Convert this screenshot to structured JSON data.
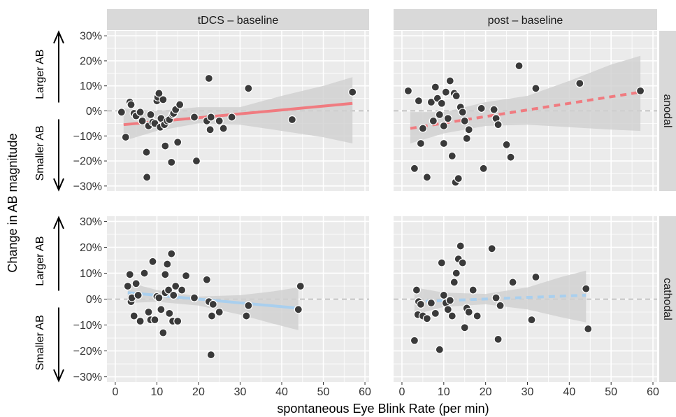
{
  "chart_data": {
    "type": "scatter",
    "xlabel": "spontaneous Eye Blink Rate (per min)",
    "ylabel": "Change in AB magnitude",
    "x_ticks": [
      "0",
      "10",
      "20",
      "30",
      "40",
      "50",
      "60"
    ],
    "x_tick_values": [
      0,
      10,
      20,
      30,
      40,
      50,
      60
    ],
    "y_ticks": [
      "−30%",
      "−20%",
      "−10%",
      "0%",
      "10%",
      "20%",
      "30%"
    ],
    "y_tick_values": [
      -30,
      -20,
      -10,
      0,
      10,
      20,
      30
    ],
    "xlim": [
      -2,
      61
    ],
    "ylim": [
      -32,
      32
    ],
    "columns": [
      "tDCS – baseline",
      "post – baseline"
    ],
    "rows": [
      "anodal",
      "cathodal"
    ],
    "annotations": {
      "larger": "Larger AB",
      "smaller": "Smaller AB"
    },
    "colors": {
      "anodal": "#f07b80",
      "cathodal": "#a9cfee",
      "point": "#3a3a3a",
      "ribbon": "#cfcfcf",
      "panel": "#ebebeb",
      "strip": "#d9d9d9"
    },
    "panels": [
      {
        "column": "tDCS – baseline",
        "row": "anodal",
        "line_style": "solid",
        "fit": {
          "x": [
            2,
            57
          ],
          "y": [
            -5.5,
            3.0
          ]
        },
        "band": {
          "x": [
            2,
            10,
            20,
            30,
            40,
            50,
            57
          ],
          "lower": [
            -12.0,
            -8.0,
            -5.0,
            -5.5,
            -8.0,
            -10.5,
            -13.0
          ],
          "upper": [
            1.0,
            0.0,
            1.5,
            1.5,
            6.0,
            10.0,
            13.5
          ]
        },
        "points": [
          [
            1.5,
            -0.5
          ],
          [
            2.5,
            -10.5
          ],
          [
            3.5,
            3.5
          ],
          [
            3.8,
            2.5
          ],
          [
            4.5,
            -1.0
          ],
          [
            5.0,
            -2.0
          ],
          [
            6.0,
            -0.5
          ],
          [
            6.5,
            -4.0
          ],
          [
            7.5,
            -16.5
          ],
          [
            7.6,
            -26.5
          ],
          [
            8.0,
            -6.0
          ],
          [
            8.5,
            -1.5
          ],
          [
            9.0,
            -4.5
          ],
          [
            9.5,
            -5.0
          ],
          [
            10.0,
            4.0
          ],
          [
            10.2,
            5.5
          ],
          [
            10.5,
            7.0
          ],
          [
            10.8,
            -6.5
          ],
          [
            11.0,
            -3.0
          ],
          [
            11.5,
            4.5
          ],
          [
            11.8,
            -5.5
          ],
          [
            12.0,
            -14.0
          ],
          [
            12.5,
            -4.0
          ],
          [
            13.0,
            -3.5
          ],
          [
            13.5,
            -20.5
          ],
          [
            13.8,
            -1.5
          ],
          [
            14.0,
            -1.0
          ],
          [
            14.5,
            0.5
          ],
          [
            15.0,
            -12.5
          ],
          [
            15.5,
            2.5
          ],
          [
            19.0,
            -2.5
          ],
          [
            19.5,
            -20.0
          ],
          [
            22.0,
            -4.0
          ],
          [
            22.5,
            13.0
          ],
          [
            22.8,
            -7.5
          ],
          [
            23.0,
            -2.5
          ],
          [
            25.0,
            -4.0
          ],
          [
            26.0,
            -7.0
          ],
          [
            28.0,
            -2.5
          ],
          [
            32.0,
            9.0
          ],
          [
            42.5,
            -3.5
          ],
          [
            57.0,
            7.5
          ]
        ]
      },
      {
        "column": "post – baseline",
        "row": "anodal",
        "line_style": "dashed",
        "fit": {
          "x": [
            2,
            57
          ],
          "y": [
            -7.0,
            7.5
          ]
        },
        "band": {
          "x": [
            2,
            10,
            20,
            30,
            40,
            50,
            57
          ],
          "lower": [
            -13.0,
            -9.0,
            -6.0,
            -5.5,
            -6.5,
            -7.5,
            -8.0
          ],
          "upper": [
            -0.5,
            -0.5,
            3.5,
            6.0,
            12.0,
            18.5,
            22.0
          ]
        },
        "points": [
          [
            1.5,
            8.0
          ],
          [
            3.0,
            -23.0
          ],
          [
            4.0,
            4.0
          ],
          [
            4.5,
            -13.0
          ],
          [
            5.0,
            -7.0
          ],
          [
            6.0,
            -26.5
          ],
          [
            7.0,
            3.5
          ],
          [
            7.5,
            -4.0
          ],
          [
            8.0,
            9.5
          ],
          [
            8.5,
            5.0
          ],
          [
            9.0,
            -1.5
          ],
          [
            9.5,
            3.0
          ],
          [
            10.0,
            -6.0
          ],
          [
            10.0,
            -13.0
          ],
          [
            10.5,
            7.5
          ],
          [
            11.0,
            -3.0
          ],
          [
            11.5,
            12.0
          ],
          [
            12.0,
            -18.0
          ],
          [
            12.5,
            7.0
          ],
          [
            12.8,
            -28.5
          ],
          [
            13.0,
            6.0
          ],
          [
            13.5,
            -27.0
          ],
          [
            14.0,
            1.5
          ],
          [
            14.5,
            -0.5
          ],
          [
            15.0,
            -4.0
          ],
          [
            15.5,
            -11.0
          ],
          [
            16.0,
            -7.5
          ],
          [
            19.0,
            1.0
          ],
          [
            19.5,
            -23.0
          ],
          [
            22.0,
            0.5
          ],
          [
            22.5,
            -3.0
          ],
          [
            23.0,
            -5.5
          ],
          [
            25.0,
            -13.5
          ],
          [
            26.0,
            -18.5
          ],
          [
            28.0,
            18.0
          ],
          [
            32.0,
            9.0
          ],
          [
            42.5,
            11.0
          ],
          [
            57.0,
            8.0
          ]
        ]
      },
      {
        "column": "tDCS – baseline",
        "row": "cathodal",
        "line_style": "solid",
        "fit": {
          "x": [
            3,
            44
          ],
          "y": [
            2.5,
            -3.5
          ]
        },
        "band": {
          "x": [
            3,
            10,
            20,
            30,
            38,
            44
          ],
          "lower": [
            -1.5,
            -1.0,
            -2.5,
            -6.0,
            -9.5,
            -12.0
          ],
          "upper": [
            6.5,
            3.5,
            1.0,
            1.5,
            3.0,
            4.5
          ]
        },
        "points": [
          [
            3.0,
            5.0
          ],
          [
            3.5,
            9.5
          ],
          [
            3.8,
            -1.0
          ],
          [
            4.0,
            0.5
          ],
          [
            4.5,
            -6.5
          ],
          [
            5.0,
            6.0
          ],
          [
            5.5,
            1.5
          ],
          [
            6.0,
            -8.5
          ],
          [
            7.0,
            10.0
          ],
          [
            8.0,
            -5.0
          ],
          [
            8.5,
            -8.0
          ],
          [
            9.0,
            14.5
          ],
          [
            9.5,
            -8.0
          ],
          [
            10.0,
            1.0
          ],
          [
            10.5,
            0.5
          ],
          [
            11.0,
            -4.0
          ],
          [
            11.5,
            -13.0
          ],
          [
            12.0,
            2.5
          ],
          [
            12.0,
            9.5
          ],
          [
            12.5,
            13.5
          ],
          [
            12.8,
            3.5
          ],
          [
            13.0,
            -5.5
          ],
          [
            13.5,
            17.5
          ],
          [
            13.8,
            -8.5
          ],
          [
            14.0,
            1.5
          ],
          [
            14.5,
            5.0
          ],
          [
            15.0,
            -8.5
          ],
          [
            16.0,
            3.5
          ],
          [
            17.0,
            9.0
          ],
          [
            19.0,
            0.5
          ],
          [
            22.0,
            7.5
          ],
          [
            22.5,
            -1.0
          ],
          [
            23.0,
            -21.5
          ],
          [
            23.2,
            -6.5
          ],
          [
            23.5,
            -2.0
          ],
          [
            25.0,
            -5.0
          ],
          [
            31.5,
            -6.5
          ],
          [
            32.0,
            -2.5
          ],
          [
            44.0,
            -4.0
          ],
          [
            44.5,
            5.0
          ]
        ]
      },
      {
        "column": "post – baseline",
        "row": "cathodal",
        "line_style": "dashed",
        "fit": {
          "x": [
            3,
            44
          ],
          "y": [
            -1.0,
            1.5
          ]
        },
        "band": {
          "x": [
            3,
            10,
            20,
            30,
            38,
            44
          ],
          "lower": [
            -6.0,
            -3.0,
            -2.0,
            -4.0,
            -7.0,
            -9.0
          ],
          "upper": [
            4.5,
            2.5,
            2.0,
            4.5,
            8.5,
            11.0
          ]
        },
        "points": [
          [
            3.0,
            -16.0
          ],
          [
            3.5,
            3.5
          ],
          [
            3.8,
            -6.0
          ],
          [
            4.0,
            -1.0
          ],
          [
            4.5,
            -2.0
          ],
          [
            5.0,
            -6.5
          ],
          [
            6.0,
            -7.5
          ],
          [
            7.0,
            -1.5
          ],
          [
            8.0,
            -5.5
          ],
          [
            9.0,
            -19.5
          ],
          [
            9.5,
            14.0
          ],
          [
            10.0,
            1.5
          ],
          [
            10.5,
            -1.5
          ],
          [
            11.0,
            -4.0
          ],
          [
            11.5,
            -0.5
          ],
          [
            12.0,
            -6.5
          ],
          [
            12.5,
            6.5
          ],
          [
            13.0,
            10.0
          ],
          [
            13.5,
            15.5
          ],
          [
            14.0,
            20.5
          ],
          [
            14.5,
            14.0
          ],
          [
            15.0,
            -11.0
          ],
          [
            15.5,
            -3.5
          ],
          [
            16.0,
            -5.0
          ],
          [
            17.0,
            3.5
          ],
          [
            18.0,
            -6.5
          ],
          [
            21.5,
            19.5
          ],
          [
            22.5,
            0.5
          ],
          [
            23.0,
            -15.5
          ],
          [
            23.5,
            -2.5
          ],
          [
            26.5,
            6.5
          ],
          [
            31.0,
            -8.0
          ],
          [
            32.0,
            8.5
          ],
          [
            44.0,
            4.0
          ],
          [
            44.5,
            -11.5
          ]
        ]
      }
    ]
  }
}
